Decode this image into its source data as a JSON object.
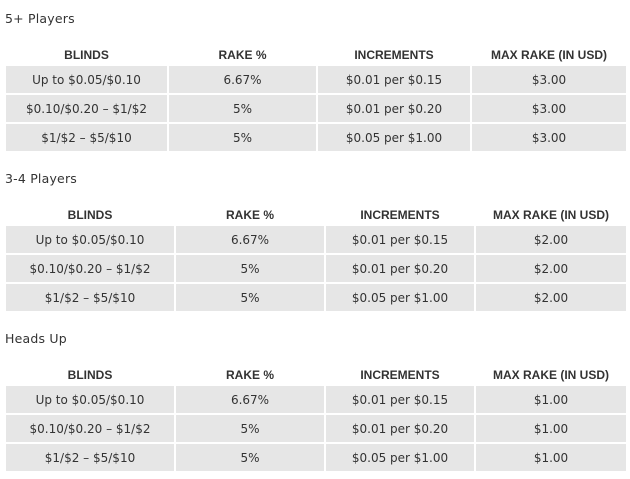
{
  "sections": [
    {
      "title": "5+ Players",
      "headers": [
        "BLINDS",
        "RAKE %",
        "INCREMENTS",
        "MAX RAKE (IN USD)"
      ],
      "rows": [
        [
          "Up to $0.05/$0.10",
          "6.67%",
          "$0.01 per $0.15",
          "$3.00"
        ],
        [
          "$0.10/$0.20 – $1/$2",
          "5%",
          "$0.01 per $0.20",
          "$3.00"
        ],
        [
          "$1/$2 – $5/$10",
          "5%",
          "$0.05 per $1.00",
          "$3.00"
        ]
      ]
    },
    {
      "title": "3-4 Players",
      "headers": [
        "BLINDS",
        "RAKE %",
        "INCREMENTS",
        "MAX RAKE (IN USD)"
      ],
      "rows": [
        [
          "Up to $0.05/$0.10",
          "6.67%",
          "$0.01 per $0.15",
          "$2.00"
        ],
        [
          "$0.10/$0.20 – $1/$2",
          "5%",
          "$0.01 per $0.20",
          "$2.00"
        ],
        [
          "$1/$2 – $5/$10",
          "5%",
          "$0.05 per $1.00",
          "$2.00"
        ]
      ]
    },
    {
      "title": "Heads Up",
      "headers": [
        "BLINDS",
        "RAKE %",
        "INCREMENTS",
        "MAX RAKE (IN USD)"
      ],
      "rows": [
        [
          "Up to $0.05/$0.10",
          "6.67%",
          "$0.01 per $0.15",
          "$1.00"
        ],
        [
          "$0.10/$0.20 – $1/$2",
          "5%",
          "$0.01 per $0.20",
          "$1.00"
        ],
        [
          "$1/$2 – $5/$10",
          "5%",
          "$0.05 per $1.00",
          "$1.00"
        ]
      ]
    }
  ]
}
